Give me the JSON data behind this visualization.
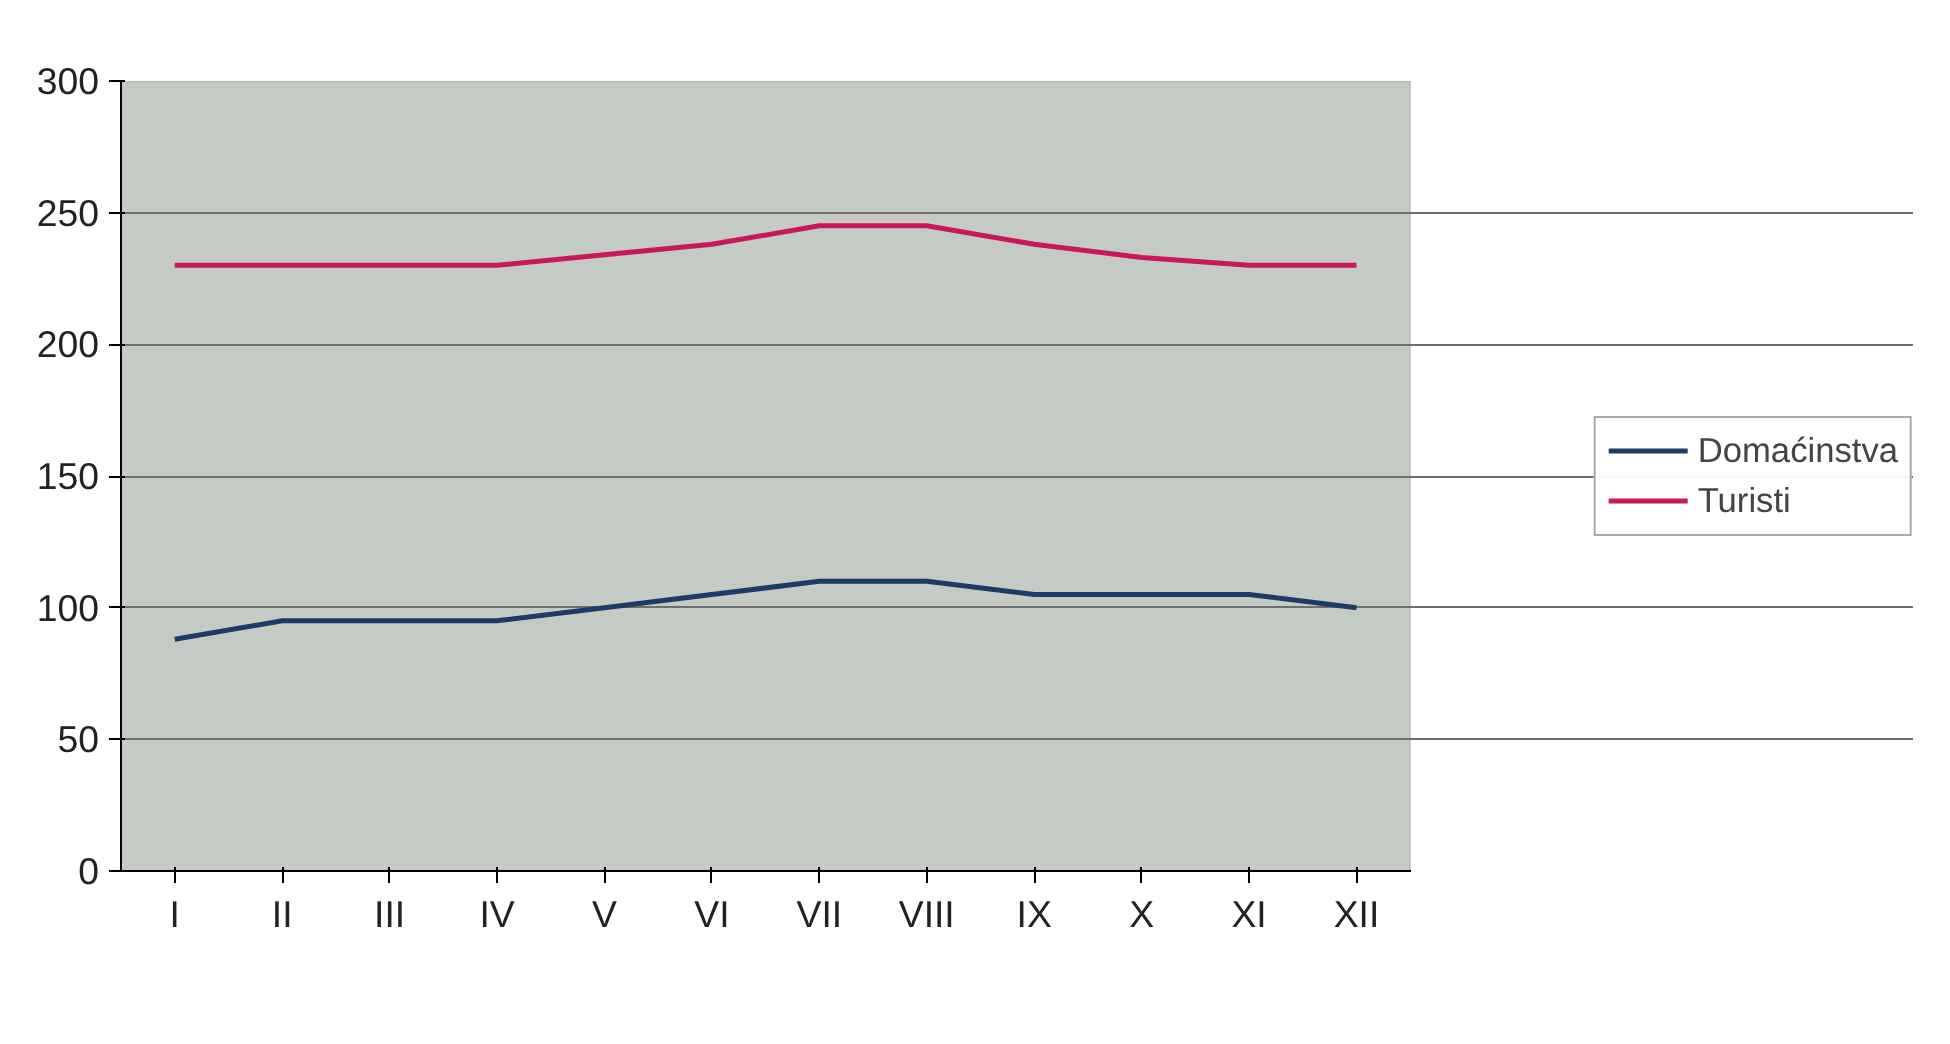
{
  "chart_data": {
    "type": "line",
    "categories": [
      "I",
      "II",
      "III",
      "IV",
      "V",
      "VI",
      "VII",
      "VIII",
      "IX",
      "X",
      "XI",
      "XII"
    ],
    "series": [
      {
        "name": "Domaćinstva",
        "color": "#1f3a68",
        "values": [
          88,
          95,
          95,
          95,
          100,
          105,
          110,
          110,
          105,
          105,
          105,
          100
        ]
      },
      {
        "name": "Turisti",
        "color": "#c8185a",
        "values": [
          230,
          230,
          230,
          230,
          234,
          238,
          245,
          245,
          238,
          233,
          230,
          230
        ]
      }
    ],
    "ylim": [
      0,
      300
    ],
    "yticks": [
      0,
      50,
      100,
      150,
      200,
      250,
      300
    ],
    "grid": "y",
    "legend": "right",
    "marker": "none",
    "line_style": "solid"
  }
}
